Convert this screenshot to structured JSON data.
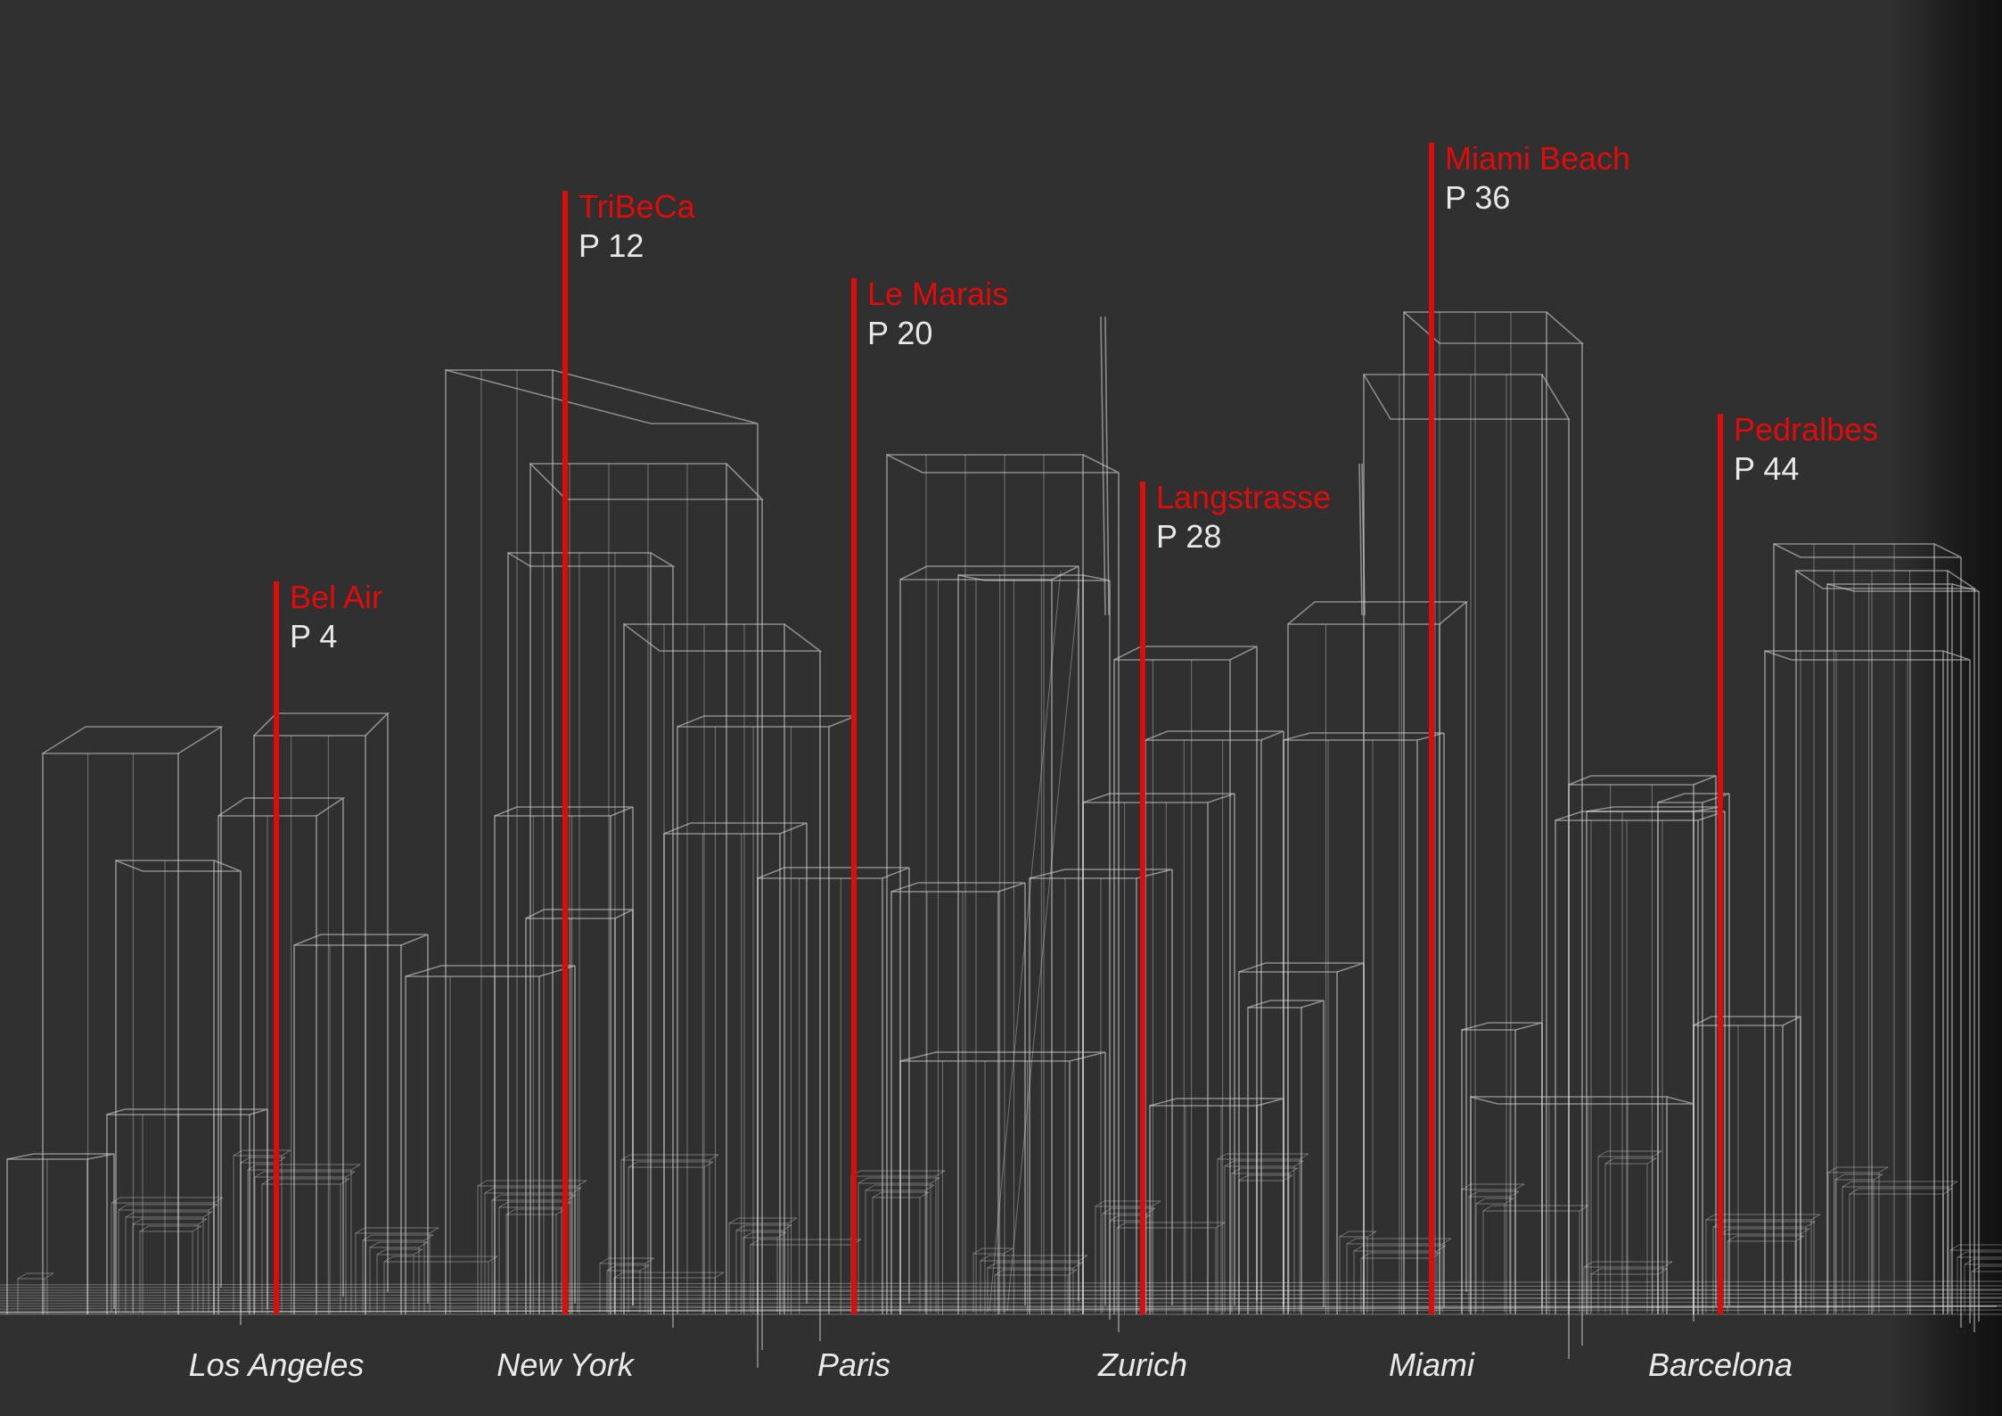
{
  "colors": {
    "background": "#303030",
    "accent": "#e00c0c",
    "wireframe": "#d8d8d8",
    "text": "#eaeaea"
  },
  "markers": [
    {
      "city": "Los Angeles",
      "district": "Bel Air",
      "page": "P 4"
    },
    {
      "city": "New York",
      "district": "TriBeCa",
      "page": "P 12"
    },
    {
      "city": "Paris",
      "district": "Le Marais",
      "page": "P 20"
    },
    {
      "city": "Zurich",
      "district": "Langstrasse",
      "page": "P 28"
    },
    {
      "city": "Miami",
      "district": "Miami Beach",
      "page": "P 36"
    },
    {
      "city": "Barcelona",
      "district": "Pedralbes",
      "page": "P 44"
    }
  ]
}
